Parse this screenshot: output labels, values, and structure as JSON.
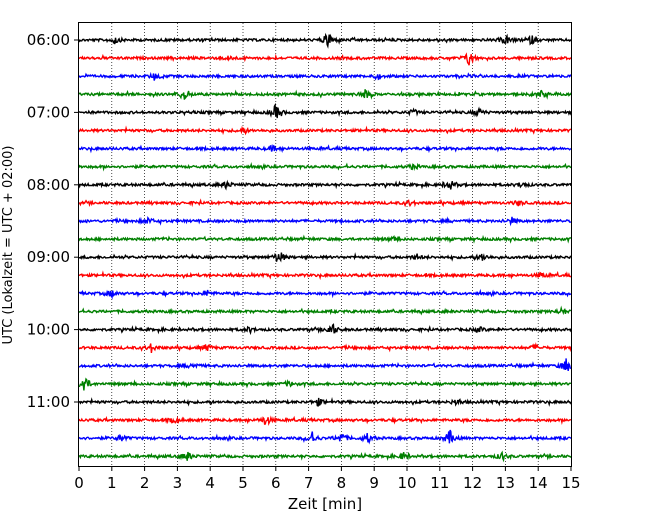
{
  "chart_data": {
    "type": "line",
    "title": "",
    "xlabel": "Zeit  [min]",
    "ylabel": "UTC (Lokalzeit = UTC + 02:00)",
    "xlim": [
      0,
      15
    ],
    "x_ticks": [
      "0",
      "1",
      "2",
      "3",
      "4",
      "5",
      "6",
      "7",
      "8",
      "9",
      "10",
      "11",
      "12",
      "13",
      "14",
      "15"
    ],
    "y_ticks": [
      "06:00",
      "07:00",
      "08:00",
      "09:00",
      "10:00",
      "11:00"
    ],
    "y_tick_rows": [
      0,
      4,
      8,
      12,
      16,
      20
    ],
    "rows_per_hour": 4,
    "row_minutes": 15,
    "grid": "vertical dotted",
    "row_colors": [
      "#000000",
      "#ff0000",
      "#0000ff",
      "#008000"
    ],
    "traces": [
      {
        "row": 0,
        "start": "06:00",
        "color": "#000000",
        "events": [
          {
            "t": 1.1,
            "amp": 0.4
          },
          {
            "t": 7.6,
            "amp": 1.0
          },
          {
            "t": 13.0,
            "amp": 0.6
          },
          {
            "t": 13.8,
            "amp": 0.5
          }
        ]
      },
      {
        "row": 1,
        "start": "06:15",
        "color": "#ff0000",
        "events": [
          {
            "t": 11.9,
            "amp": 0.9
          },
          {
            "t": 4.6,
            "amp": 0.3
          }
        ]
      },
      {
        "row": 2,
        "start": "06:30",
        "color": "#0000ff",
        "events": [
          {
            "t": 2.3,
            "amp": 0.35
          },
          {
            "t": 9.1,
            "amp": 0.3
          }
        ]
      },
      {
        "row": 3,
        "start": "06:45",
        "color": "#008000",
        "events": [
          {
            "t": 3.2,
            "amp": 0.7
          },
          {
            "t": 8.7,
            "amp": 0.6
          },
          {
            "t": 14.1,
            "amp": 0.4
          }
        ]
      },
      {
        "row": 4,
        "start": "07:00",
        "color": "#000000",
        "events": [
          {
            "t": 6.0,
            "amp": 0.9
          },
          {
            "t": 12.2,
            "amp": 0.5
          },
          {
            "t": 10.2,
            "amp": 0.3
          }
        ]
      },
      {
        "row": 5,
        "start": "07:15",
        "color": "#ff0000",
        "events": [
          {
            "t": 5.0,
            "amp": 0.3
          }
        ]
      },
      {
        "row": 6,
        "start": "07:30",
        "color": "#0000ff",
        "events": [
          {
            "t": 5.9,
            "amp": 0.3
          }
        ]
      },
      {
        "row": 7,
        "start": "07:45",
        "color": "#008000",
        "events": [
          {
            "t": 10.2,
            "amp": 0.3
          }
        ]
      },
      {
        "row": 8,
        "start": "08:00",
        "color": "#000000",
        "events": [
          {
            "t": 4.5,
            "amp": 0.4
          },
          {
            "t": 11.3,
            "amp": 0.6
          },
          {
            "t": 13.5,
            "amp": 0.35
          }
        ]
      },
      {
        "row": 9,
        "start": "08:15",
        "color": "#ff0000",
        "events": [
          {
            "t": 10.1,
            "amp": 0.3
          },
          {
            "t": 13.4,
            "amp": 0.3
          }
        ]
      },
      {
        "row": 10,
        "start": "08:30",
        "color": "#0000ff",
        "events": [
          {
            "t": 2.1,
            "amp": 0.4
          },
          {
            "t": 13.2,
            "amp": 0.35
          }
        ]
      },
      {
        "row": 11,
        "start": "08:45",
        "color": "#008000",
        "events": [
          {
            "t": 9.6,
            "amp": 0.25
          }
        ]
      },
      {
        "row": 12,
        "start": "09:00",
        "color": "#000000",
        "events": [
          {
            "t": 6.1,
            "amp": 0.9
          },
          {
            "t": 12.3,
            "amp": 0.45
          },
          {
            "t": 10.3,
            "amp": 0.3
          }
        ]
      },
      {
        "row": 13,
        "start": "09:15",
        "color": "#ff0000",
        "events": [
          {
            "t": 14.1,
            "amp": 0.3
          }
        ]
      },
      {
        "row": 14,
        "start": "09:30",
        "color": "#0000ff",
        "events": [
          {
            "t": 1.0,
            "amp": 0.4
          },
          {
            "t": 3.9,
            "amp": 0.35
          }
        ]
      },
      {
        "row": 15,
        "start": "09:45",
        "color": "#008000",
        "events": [
          {
            "t": 14.7,
            "amp": 0.3
          }
        ]
      },
      {
        "row": 16,
        "start": "10:00",
        "color": "#000000",
        "events": [
          {
            "t": 7.7,
            "amp": 0.85
          },
          {
            "t": 5.2,
            "amp": 0.3
          },
          {
            "t": 12.2,
            "amp": 0.3
          }
        ]
      },
      {
        "row": 17,
        "start": "10:15",
        "color": "#ff0000",
        "events": [
          {
            "t": 2.2,
            "amp": 0.5
          },
          {
            "t": 3.9,
            "amp": 0.4
          },
          {
            "t": 13.9,
            "amp": 0.3
          }
        ]
      },
      {
        "row": 18,
        "start": "10:30",
        "color": "#0000ff",
        "events": [
          {
            "t": 14.85,
            "amp": 0.85
          },
          {
            "t": 3.5,
            "amp": 0.3
          }
        ]
      },
      {
        "row": 19,
        "start": "10:45",
        "color": "#008000",
        "events": [
          {
            "t": 0.15,
            "amp": 1.1
          },
          {
            "t": 6.4,
            "amp": 0.3
          }
        ]
      },
      {
        "row": 20,
        "start": "11:00",
        "color": "#000000",
        "events": [
          {
            "t": 7.3,
            "amp": 0.4
          },
          {
            "t": 11.5,
            "amp": 0.3
          }
        ]
      },
      {
        "row": 21,
        "start": "11:15",
        "color": "#ff0000",
        "events": [
          {
            "t": 5.7,
            "amp": 0.6
          },
          {
            "t": 2.9,
            "amp": 0.3
          }
        ]
      },
      {
        "row": 22,
        "start": "11:30",
        "color": "#0000ff",
        "events": [
          {
            "t": 1.3,
            "amp": 0.4
          },
          {
            "t": 7.1,
            "amp": 0.7
          },
          {
            "t": 8.0,
            "amp": 0.65
          },
          {
            "t": 8.8,
            "amp": 0.55
          },
          {
            "t": 11.3,
            "amp": 0.9
          }
        ]
      },
      {
        "row": 23,
        "start": "11:45",
        "color": "#008000",
        "events": [
          {
            "t": 3.3,
            "amp": 0.5
          },
          {
            "t": 9.9,
            "amp": 0.4
          },
          {
            "t": 12.9,
            "amp": 0.45
          }
        ]
      }
    ]
  }
}
